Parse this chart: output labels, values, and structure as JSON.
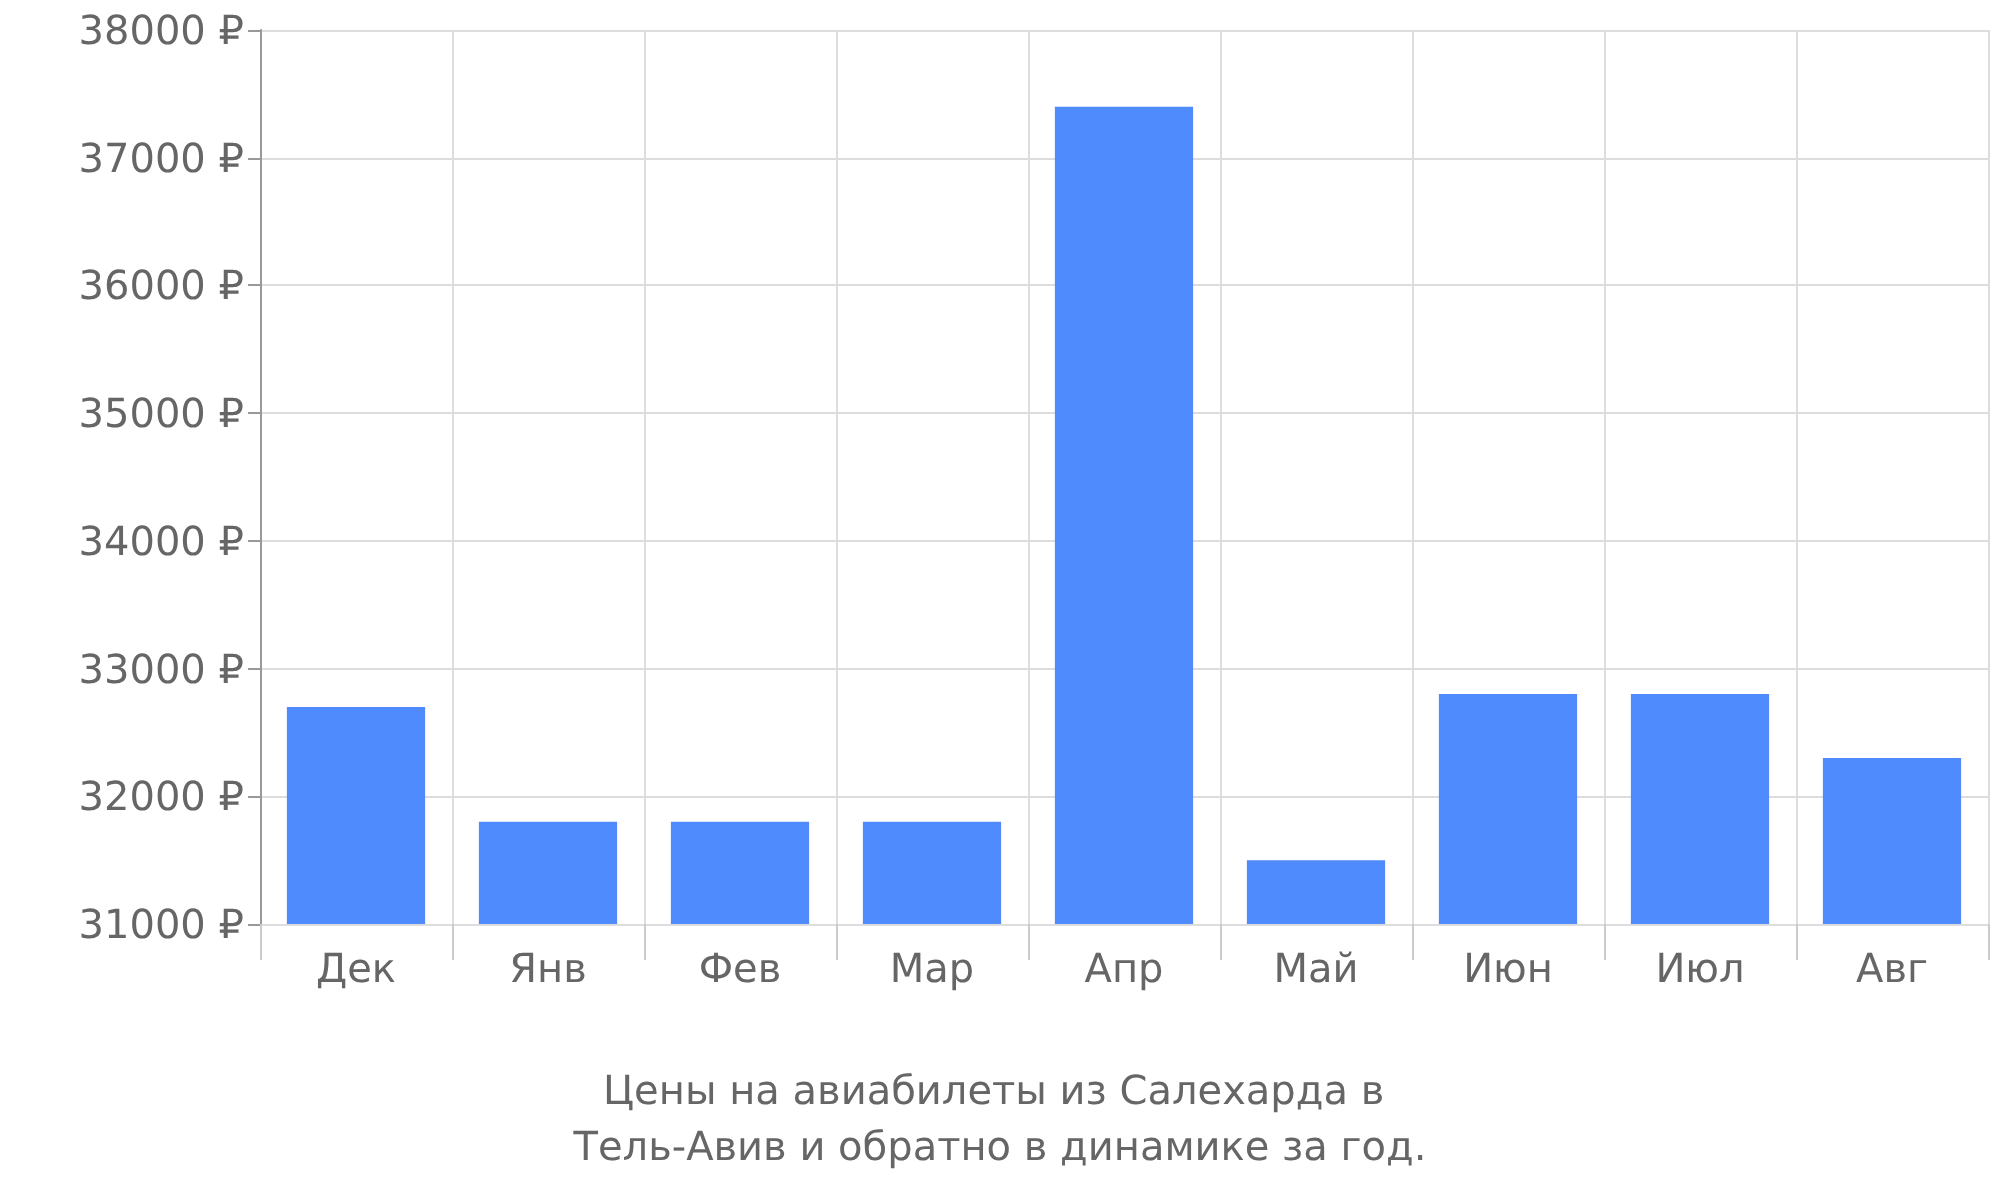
{
  "chart_data": {
    "type": "bar",
    "title": "Цены на авиабилеты из Салехарда в Тель-Авив и обратно в динамике за год.",
    "categories": [
      "Дек",
      "Янв",
      "Фев",
      "Мар",
      "Апр",
      "Май",
      "Июн",
      "Июл",
      "Авг"
    ],
    "values": [
      32700,
      31800,
      31800,
      31800,
      37400,
      31500,
      32800,
      32800,
      32300
    ],
    "color": "#4f8bfc",
    "ylim": [
      31000,
      38000
    ],
    "yticks": [
      {
        "value": 31000,
        "label": "31000 ₽"
      },
      {
        "value": 32000,
        "label": "32000 ₽"
      },
      {
        "value": 33000,
        "label": "33000 ₽"
      },
      {
        "value": 34000,
        "label": "34000 ₽"
      },
      {
        "value": 35000,
        "label": "35000 ₽"
      },
      {
        "value": 36000,
        "label": "36000 ₽"
      },
      {
        "value": 37000,
        "label": "37000 ₽"
      },
      {
        "value": 38000,
        "label": "38000 ₽"
      }
    ],
    "grid": true
  }
}
